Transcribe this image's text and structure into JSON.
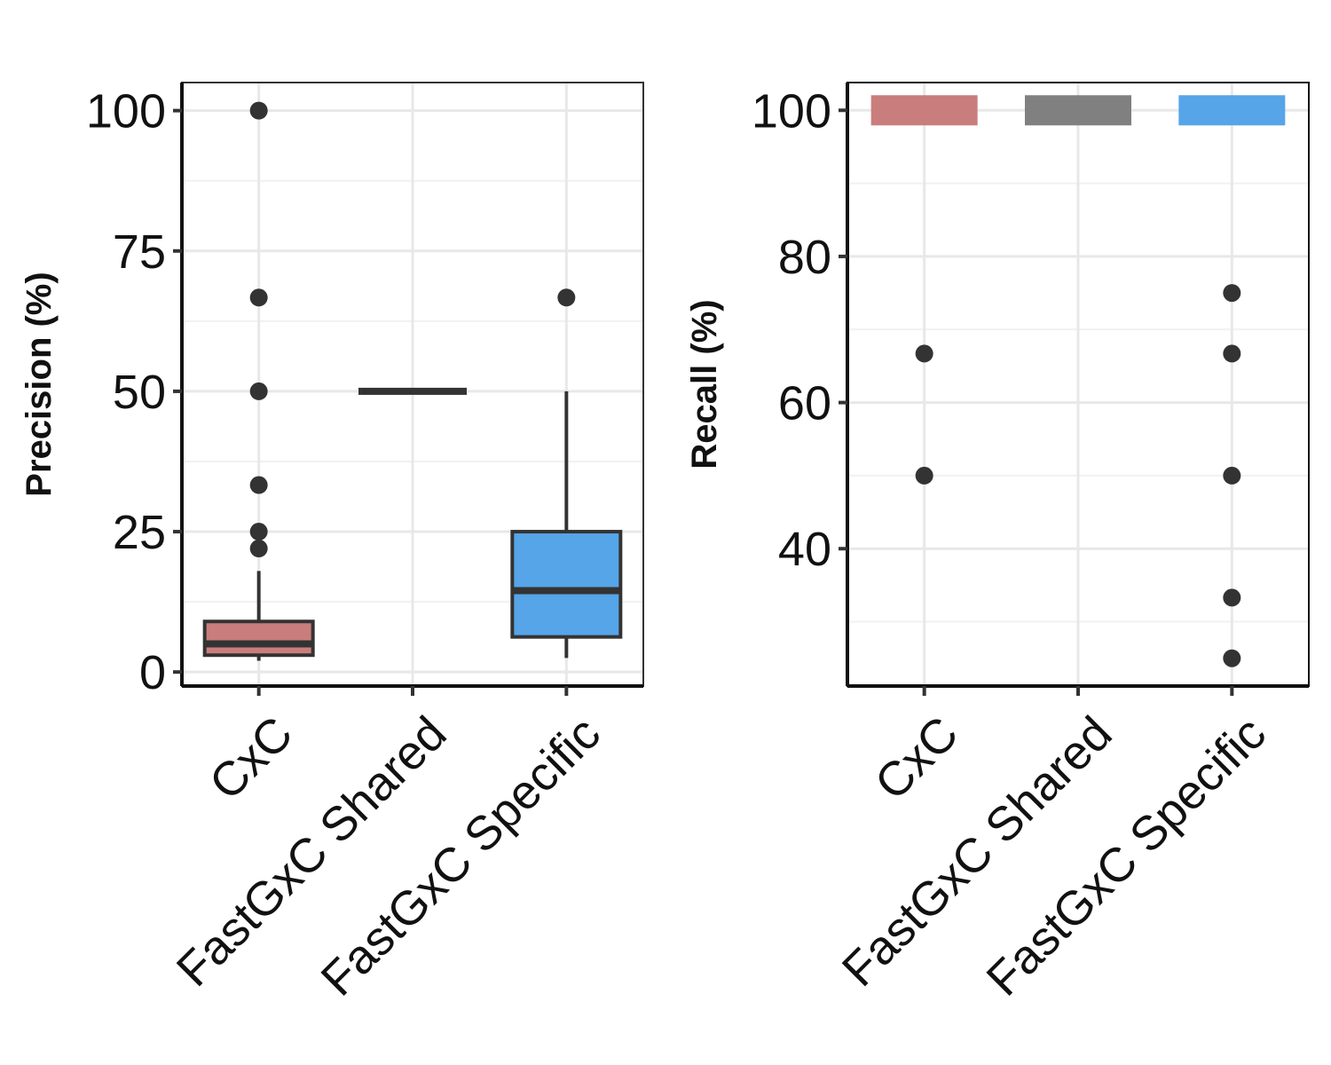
{
  "chart_data": [
    {
      "type": "box",
      "ylabel": "Precision (%)",
      "ylim": [
        -2.5,
        105
      ],
      "yticks": [
        0,
        25,
        50,
        75,
        100
      ],
      "categories": [
        "CxC",
        "FastGxC Shared",
        "FastGxC Specific"
      ],
      "colors": [
        "#c97d7d",
        "#808080",
        "#56a5e8"
      ],
      "boxes": [
        {
          "category": "CxC",
          "q1": 3,
          "median": 5,
          "q3": 9,
          "whisker_low": 2,
          "whisker_high": 18,
          "outliers": [
            100,
            66.7,
            50,
            33.3,
            25,
            22
          ]
        },
        {
          "category": "FastGxC Shared",
          "q1": 50,
          "median": 50,
          "q3": 50,
          "whisker_low": 50,
          "whisker_high": 50,
          "outliers": []
        },
        {
          "category": "FastGxC Specific",
          "q1": 6.25,
          "median": 14.5,
          "q3": 25,
          "whisker_low": 2.5,
          "whisker_high": 50,
          "outliers": [
            66.7
          ]
        }
      ],
      "grid": true
    },
    {
      "type": "box",
      "ylabel": "Recall (%)",
      "ylim": [
        21.2,
        103.8
      ],
      "yticks": [
        40,
        60,
        80,
        100
      ],
      "categories": [
        "CxC",
        "FastGxC Shared",
        "FastGxC Specific"
      ],
      "colors": [
        "#c97d7d",
        "#808080",
        "#56a5e8"
      ],
      "boxes": [
        {
          "category": "CxC",
          "q1": 100,
          "median": 100,
          "q3": 100,
          "whisker_low": 100,
          "whisker_high": 100,
          "outliers": [
            66.7,
            50
          ]
        },
        {
          "category": "FastGxC Shared",
          "q1": 100,
          "median": 100,
          "q3": 100,
          "whisker_low": 100,
          "whisker_high": 100,
          "outliers": []
        },
        {
          "category": "FastGxC Specific",
          "q1": 100,
          "median": 100,
          "q3": 100,
          "whisker_low": 100,
          "whisker_high": 100,
          "outliers": [
            75,
            66.7,
            50,
            33.3,
            25
          ]
        }
      ],
      "grid": true
    }
  ]
}
